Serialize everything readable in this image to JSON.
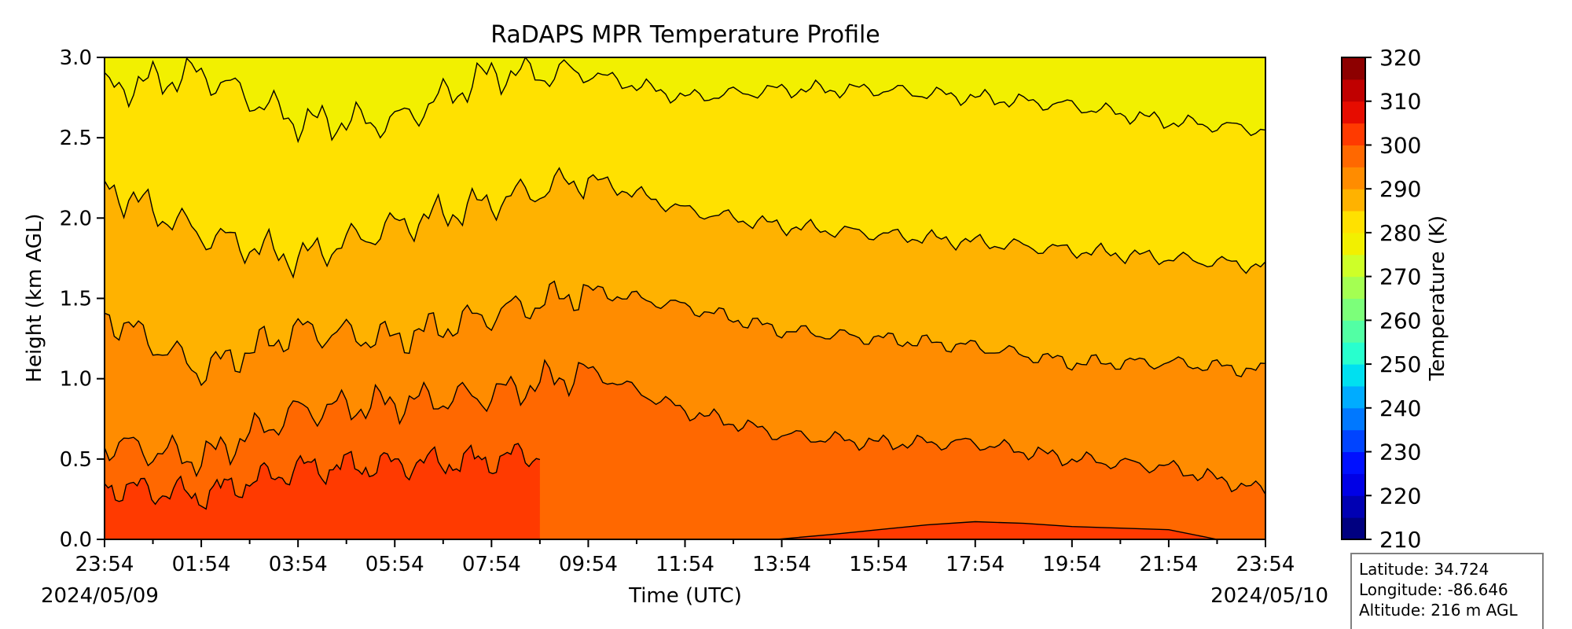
{
  "chart_data": {
    "type": "heatmap",
    "title": "RaDAPS MPR Temperature Profile",
    "xlabel": "Time (UTC)",
    "ylabel": "Height (km AGL)",
    "x_tick_labels": [
      "23:54",
      "01:54",
      "03:54",
      "05:54",
      "07:54",
      "09:54",
      "11:54",
      "13:54",
      "15:54",
      "17:54",
      "19:54",
      "21:54",
      "23:54"
    ],
    "x_range_hours": [
      0,
      24
    ],
    "start_date": "2024/05/09",
    "end_date": "2024/05/10",
    "y_tick_labels": [
      "0.0",
      "0.5",
      "1.0",
      "1.5",
      "2.0",
      "2.5",
      "3.0"
    ],
    "ylim": [
      0.0,
      3.0
    ],
    "colorbar": {
      "label": "Temperature (K)",
      "tick_labels": [
        "210",
        "220",
        "230",
        "240",
        "250",
        "260",
        "270",
        "280",
        "290",
        "300",
        "310",
        "320"
      ],
      "range": [
        210,
        320
      ],
      "levels": [
        210,
        215,
        220,
        225,
        230,
        235,
        240,
        245,
        250,
        255,
        260,
        265,
        270,
        275,
        280,
        285,
        290,
        295,
        300,
        305,
        310,
        315,
        320
      ],
      "colors": [
        "#000080",
        "#0000b3",
        "#0000e6",
        "#0010ff",
        "#0044ff",
        "#0078ff",
        "#00acff",
        "#00e0f0",
        "#28ffce",
        "#52ffa4",
        "#7cff7a",
        "#a4ff52",
        "#ceff28",
        "#f2f000",
        "#ffe100",
        "#ffb200",
        "#ff8c00",
        "#ff6800",
        "#ff3a00",
        "#e60c00",
        "#c00000",
        "#8d0000"
      ],
      "cmap": "jet"
    },
    "contour_levels_K": [
      300,
      295,
      290,
      285,
      280,
      275
    ],
    "contour_heights_km": [
      {
        "level": 295,
        "x": [
          0,
          2,
          4,
          6,
          8,
          10,
          12,
          14,
          16,
          18,
          20,
          22,
          24
        ],
        "y": [
          0.6,
          0.5,
          0.8,
          0.85,
          0.9,
          1.05,
          0.8,
          0.65,
          0.6,
          0.6,
          0.5,
          0.45,
          0.3
        ]
      },
      {
        "level": 290,
        "x": [
          0,
          2,
          4,
          6,
          8,
          10,
          12,
          14,
          16,
          18,
          20,
          22,
          24
        ],
        "y": [
          1.4,
          1.05,
          1.3,
          1.25,
          1.4,
          1.55,
          1.45,
          1.3,
          1.25,
          1.2,
          1.1,
          1.1,
          1.05
        ]
      },
      {
        "level": 285,
        "x": [
          0,
          2,
          4,
          6,
          8,
          10,
          12,
          14,
          16,
          18,
          20,
          22,
          24
        ],
        "y": [
          2.2,
          1.9,
          1.75,
          1.95,
          2.1,
          2.25,
          2.05,
          1.95,
          1.9,
          1.85,
          1.8,
          1.75,
          1.7
        ]
      },
      {
        "level": 280,
        "x": [
          0,
          2,
          4,
          6,
          8,
          10,
          12,
          14,
          16,
          18,
          20,
          22,
          24
        ],
        "y": [
          2.8,
          2.9,
          2.6,
          2.6,
          2.9,
          2.9,
          2.75,
          2.8,
          2.8,
          2.75,
          2.7,
          2.6,
          2.55
        ]
      },
      {
        "level": 300,
        "x": [
          13.9,
          15,
          16,
          17,
          18,
          19,
          20,
          21,
          22,
          23
        ],
        "y": [
          0.0,
          0.03,
          0.06,
          0.09,
          0.11,
          0.1,
          0.08,
          0.07,
          0.06,
          0.0
        ]
      }
    ],
    "grid": false
  },
  "info_box": {
    "latitude": "Latitude: 34.724",
    "longitude": "Longitude: -86.646",
    "altitude": "Altitude: 216 m AGL"
  }
}
